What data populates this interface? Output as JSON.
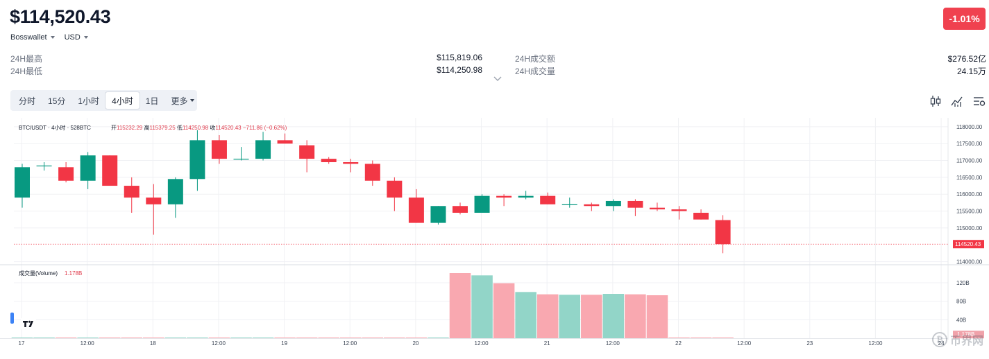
{
  "header": {
    "price": "$114,520.43",
    "change_pct": "-1.01%",
    "exchange": "Bosswallet",
    "currency": "USD"
  },
  "stats": {
    "high_label": "24H最高",
    "high_value": "$115,819.06",
    "low_label": "24H最低",
    "low_value": "$114,250.98",
    "turnover_label": "24H成交额",
    "turnover_value": "$276.52亿",
    "volume_label": "24H成交量",
    "volume_value": "24.15万"
  },
  "timeframes": {
    "items": [
      "分时",
      "15分",
      "1小时",
      "4小时",
      "1日",
      "更多"
    ],
    "active": "4小时"
  },
  "tools": {
    "icons": [
      "candlestick-settings-icon",
      "indicator-icon",
      "chart-settings-icon"
    ]
  },
  "legend": {
    "symbol": "BTC/USDT · 4小时 · 528BTC",
    "open_label": "开",
    "open": "115232.29",
    "high_label": "高",
    "high": "115379.25",
    "low_label": "低",
    "low": "114250.98",
    "close_label": "收",
    "close": "114520.43",
    "change": "−711.86 (−0.62%)"
  },
  "volume_legend": {
    "label": "成交量(Volume)",
    "value": "1.178B"
  },
  "watermark": "币界网",
  "colors": {
    "up": "#089981",
    "down": "#f23645",
    "up_volume": "#92d5c8",
    "down_volume": "#f9a8b0",
    "badge": "#f0414f"
  },
  "chart_data": {
    "type": "candlestick",
    "title": "BTC/USDT · 4小时 · 528BTC",
    "interval": "4h",
    "y_axis": {
      "ticks": [
        "118000.00",
        "117500.00",
        "117000.00",
        "116500.00",
        "116000.00",
        "115500.00",
        "115000.00",
        "114000.00"
      ],
      "tick_values": [
        118000,
        117500,
        117000,
        116500,
        116000,
        115500,
        115000,
        114000
      ],
      "range": [
        113950,
        118100
      ],
      "last_price_label": "114520.43"
    },
    "x_axis": {
      "labels": [
        "17",
        "12:00",
        "18",
        "12:00",
        "19",
        "12:00",
        "20",
        "12:00",
        "21",
        "12:00",
        "22",
        "12:00",
        "23",
        "12:00",
        "24"
      ]
    },
    "candles": [
      {
        "o": 115900,
        "h": 116900,
        "l": 115600,
        "c": 116800
      },
      {
        "o": 116850,
        "h": 116950,
        "l": 116700,
        "c": 116850
      },
      {
        "o": 116800,
        "h": 116950,
        "l": 116350,
        "c": 116400
      },
      {
        "o": 116400,
        "h": 117250,
        "l": 116150,
        "c": 117150
      },
      {
        "o": 117150,
        "h": 117150,
        "l": 116250,
        "c": 116250
      },
      {
        "o": 116250,
        "h": 116500,
        "l": 115450,
        "c": 115900
      },
      {
        "o": 115900,
        "h": 116300,
        "l": 114800,
        "c": 115700
      },
      {
        "o": 115700,
        "h": 116500,
        "l": 115300,
        "c": 116450
      },
      {
        "o": 116450,
        "h": 117900,
        "l": 116100,
        "c": 117600
      },
      {
        "o": 117600,
        "h": 117750,
        "l": 116900,
        "c": 117050
      },
      {
        "o": 117050,
        "h": 117400,
        "l": 117000,
        "c": 117050
      },
      {
        "o": 117050,
        "h": 117850,
        "l": 117000,
        "c": 117600
      },
      {
        "o": 117600,
        "h": 117800,
        "l": 117500,
        "c": 117500
      },
      {
        "o": 117450,
        "h": 117600,
        "l": 116650,
        "c": 117050
      },
      {
        "o": 117050,
        "h": 117100,
        "l": 116900,
        "c": 116950
      },
      {
        "o": 116950,
        "h": 117050,
        "l": 116650,
        "c": 116900
      },
      {
        "o": 116900,
        "h": 117000,
        "l": 116250,
        "c": 116400
      },
      {
        "o": 116400,
        "h": 116500,
        "l": 115500,
        "c": 115900
      },
      {
        "o": 115900,
        "h": 116150,
        "l": 115150,
        "c": 115150
      },
      {
        "o": 115150,
        "h": 115650,
        "l": 115100,
        "c": 115650
      },
      {
        "o": 115650,
        "h": 115750,
        "l": 115400,
        "c": 115450
      },
      {
        "o": 115450,
        "h": 116000,
        "l": 115450,
        "c": 115950
      },
      {
        "o": 115950,
        "h": 116000,
        "l": 115650,
        "c": 115900
      },
      {
        "o": 115900,
        "h": 116100,
        "l": 115850,
        "c": 115950
      },
      {
        "o": 115950,
        "h": 116050,
        "l": 115700,
        "c": 115700
      },
      {
        "o": 115700,
        "h": 115900,
        "l": 115600,
        "c": 115700
      },
      {
        "o": 115700,
        "h": 115750,
        "l": 115500,
        "c": 115650
      },
      {
        "o": 115650,
        "h": 115850,
        "l": 115500,
        "c": 115800
      },
      {
        "o": 115800,
        "h": 115850,
        "l": 115350,
        "c": 115600
      },
      {
        "o": 115600,
        "h": 115750,
        "l": 115500,
        "c": 115550
      },
      {
        "o": 115550,
        "h": 115650,
        "l": 115250,
        "c": 115500
      },
      {
        "o": 115450,
        "h": 115550,
        "l": 115250,
        "c": 115250
      },
      {
        "o": 115232.29,
        "h": 115379.25,
        "l": 114250.98,
        "c": 114520.43
      }
    ],
    "volume": {
      "ticks": [
        "120B",
        "80B",
        "40B"
      ],
      "tick_values": [
        120,
        80,
        40
      ],
      "range": [
        0,
        150
      ],
      "unit": "B",
      "last_label": "1.178B",
      "values": [
        0.3,
        0.3,
        0.3,
        0.3,
        0.3,
        0.3,
        0.3,
        0.3,
        0.3,
        0.3,
        0.3,
        0.3,
        0.3,
        0.3,
        0.3,
        0.3,
        0.3,
        0.3,
        0.3,
        0.3,
        141,
        136,
        119,
        100,
        95,
        94,
        94,
        96,
        95,
        93,
        0.3,
        0.3,
        1.178
      ]
    }
  }
}
